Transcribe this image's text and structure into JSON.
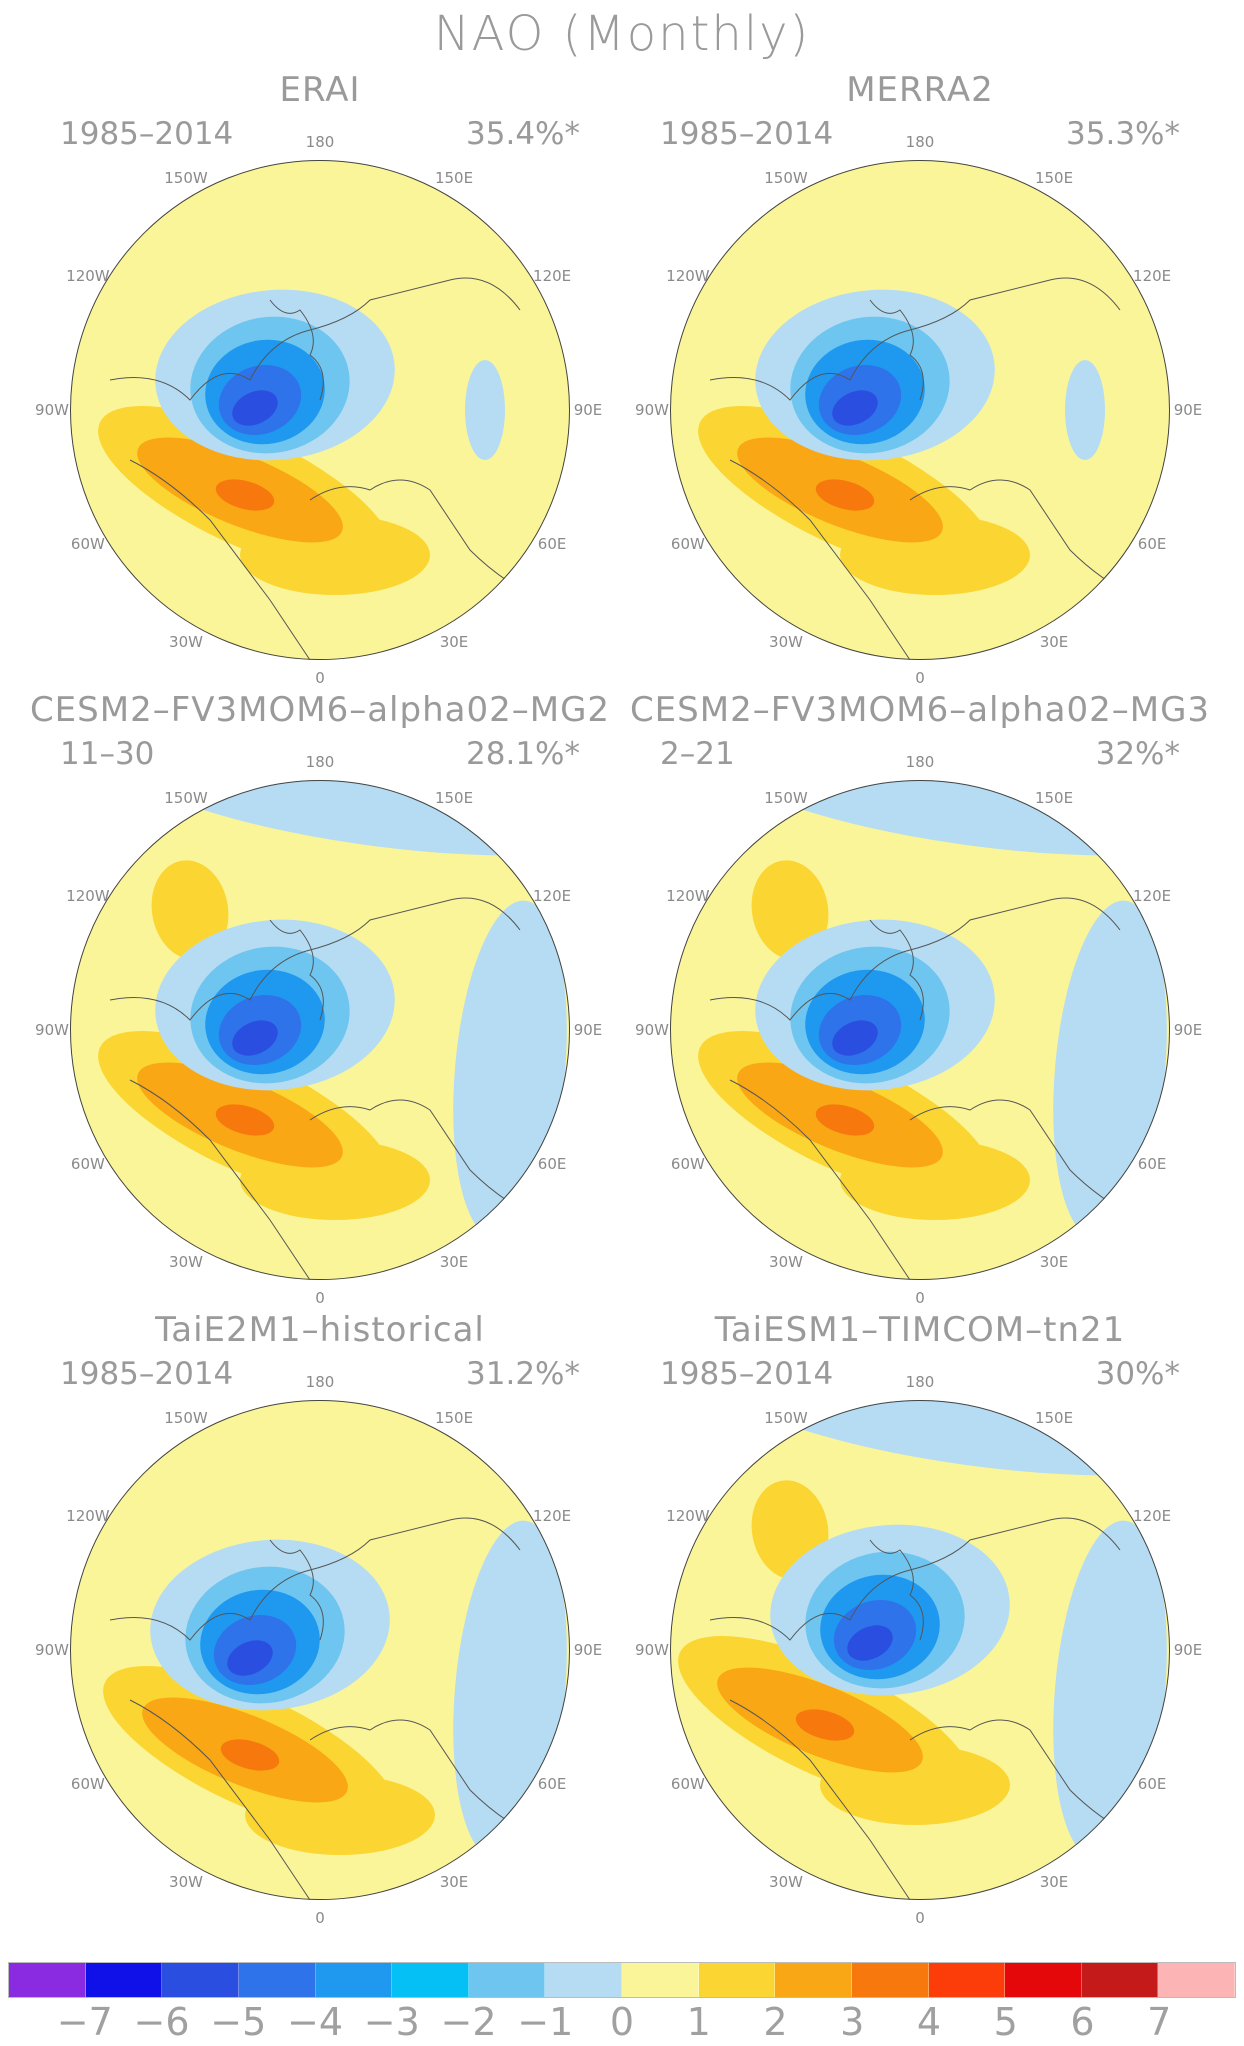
{
  "title": "NAO (Monthly)",
  "lon_labels": [
    "180",
    "150E",
    "120E",
    "90E",
    "60E",
    "30E",
    "0",
    "30W",
    "60W",
    "90W",
    "120W",
    "150W"
  ],
  "panels": [
    {
      "name": "ERAI",
      "period": "1985–2014",
      "variance": "35.4%*"
    },
    {
      "name": "MERRA2",
      "period": "1985–2014",
      "variance": "35.3%*"
    },
    {
      "name": "CESM2–FV3MOM6–alpha02–MG2",
      "period": "11–30",
      "variance": "28.1%*"
    },
    {
      "name": "CESM2–FV3MOM6–alpha02–MG3",
      "period": "2–21",
      "variance": "32%*"
    },
    {
      "name": "TaiE2M1–historical",
      "period": "1985–2014",
      "variance": "31.2%*"
    },
    {
      "name": "TaiESM1–TIMCOM–tn21",
      "period": "1985–2014",
      "variance": "30%*"
    }
  ],
  "colorbar": {
    "labels": [
      "−7",
      "−6",
      "−5",
      "−4",
      "−3",
      "−2",
      "−1",
      "0",
      "1",
      "2",
      "3",
      "4",
      "5",
      "6",
      "7"
    ],
    "colors": [
      "#8a2be2",
      "#1010e8",
      "#2a4fe0",
      "#2f73ea",
      "#1f98f0",
      "#05c0f5",
      "#6ec6f0",
      "#b5dcf2",
      "#fbf59a",
      "#fbd632",
      "#f9a714",
      "#f7790d",
      "#fc3d0a",
      "#e5080a",
      "#c41a1a",
      "#fcb4b4"
    ]
  },
  "palette": {
    "background": "#fbf59a",
    "neg1": "#b5dcf2",
    "neg2": "#6ec6f0",
    "neg3": "#1f98f0",
    "neg4": "#2f73ea",
    "neg5": "#2a4fe0",
    "pos1": "#fbd632",
    "pos2": "#f9a714",
    "pos3": "#f7790d",
    "coast": "#555555"
  }
}
